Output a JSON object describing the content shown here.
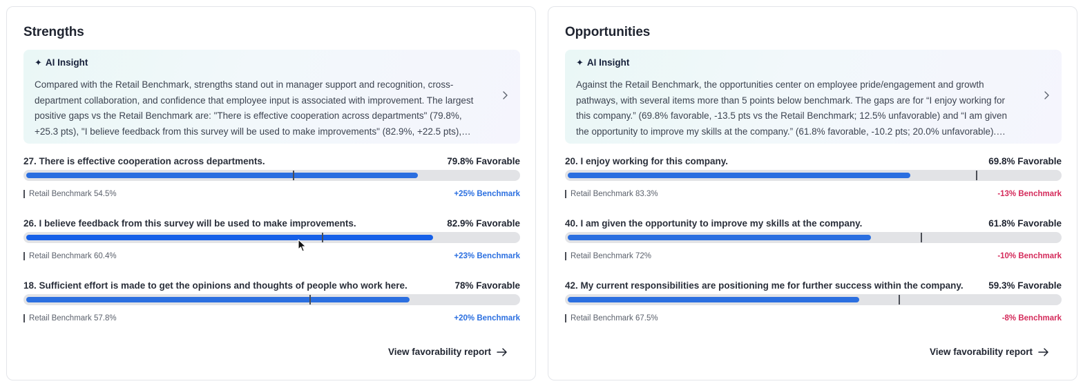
{
  "strengths": {
    "title": "Strengths",
    "insight": {
      "header": "AI Insight",
      "icon": "sparkle-icon",
      "text": "Compared with the Retail Benchmark, strengths stand out in manager support and recognition, cross-department collaboration, and confidence that employee input is associated with improvement. The largest positive gaps vs the Retail Benchmark are: \"There is effective cooperation across departments\" (79.8%, +25.3 pts), \"I believe feedback from this survey will be used to make improvements\" (82.9%, +22.5 pts), an..."
    },
    "items": [
      {
        "label": "27. There is effective cooperation across departments.",
        "value": "79.8% Favorable",
        "favorable_pct": 79.8,
        "benchmark_pct": 54.5,
        "benchmark_label": "Retail Benchmark 54.5%",
        "delta": "+25% Benchmark",
        "delta_sign": "positive"
      },
      {
        "label": "26. I believe feedback from this survey will be used to make improvements.",
        "value": "82.9% Favorable",
        "favorable_pct": 82.9,
        "benchmark_pct": 60.4,
        "benchmark_label": "Retail Benchmark 60.4%",
        "delta": "+23% Benchmark",
        "delta_sign": "positive"
      },
      {
        "label": "18. Sufficient effort is made to get the opinions and thoughts of people who work here.",
        "value": "78% Favorable",
        "favorable_pct": 78,
        "benchmark_pct": 57.8,
        "benchmark_label": "Retail Benchmark 57.8%",
        "delta": "+20% Benchmark",
        "delta_sign": "positive"
      }
    ],
    "link": "View favorability report"
  },
  "opportunities": {
    "title": "Opportunities",
    "insight": {
      "header": "AI Insight",
      "icon": "sparkle-icon",
      "text": "Against the Retail Benchmark, the opportunities center on employee pride/engagement and growth pathways, with several items more than 5 points below benchmark. The gaps are for “I enjoy working for this company.” (69.8% favorable, -13.5 pts vs the Retail Benchmark; 12.5% unfavorable) and “I am given the opportunity to improve my skills at the company.” (61.8% favorable, -10.2 pts; 20.0% unfavorable). Another..."
    },
    "items": [
      {
        "label": "20. I enjoy working for this company.",
        "value": "69.8% Favorable",
        "favorable_pct": 69.8,
        "benchmark_pct": 83.3,
        "benchmark_label": "Retail Benchmark 83.3%",
        "delta": "-13% Benchmark",
        "delta_sign": "negative"
      },
      {
        "label": "40. I am given the opportunity to improve my skills at the company.",
        "value": "61.8% Favorable",
        "favorable_pct": 61.8,
        "benchmark_pct": 72,
        "benchmark_label": "Retail Benchmark 72%",
        "delta": "-10% Benchmark",
        "delta_sign": "negative"
      },
      {
        "label": "42. My current responsibilities are positioning me for further success within the company.",
        "value": "59.3% Favorable",
        "favorable_pct": 59.3,
        "benchmark_pct": 67.5,
        "benchmark_label": "Retail Benchmark 67.5%",
        "delta": "-8% Benchmark",
        "delta_sign": "negative"
      }
    ],
    "link": "View favorability report"
  },
  "colors": {
    "bar_fill": "#2b6fe0",
    "bar_track": "#e2e3e6",
    "positive": "#2b6fe0",
    "negative": "#d42a5a",
    "benchmark_marker": "#4a4d55"
  }
}
